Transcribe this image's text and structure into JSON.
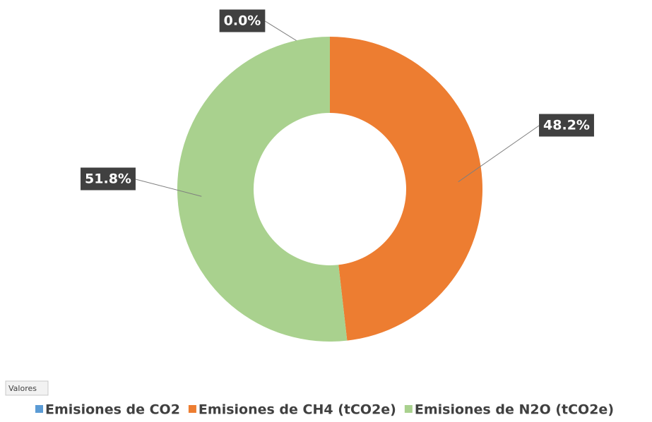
{
  "chart_data": {
    "type": "donut",
    "field_button": "Valores",
    "categories": [
      "Emisiones de CO2",
      "Emisiones de CH4 (tCO2e)",
      "Emisiones de N2O (tCO2e)"
    ],
    "values": [
      0,
      48.2,
      51.8
    ],
    "value_labels": [
      "0.0%",
      "48.2%",
      "51.8%"
    ],
    "colors": [
      "#5b9bd5",
      "#ed7d31",
      "#a9d18e"
    ],
    "legend": "bottom"
  }
}
